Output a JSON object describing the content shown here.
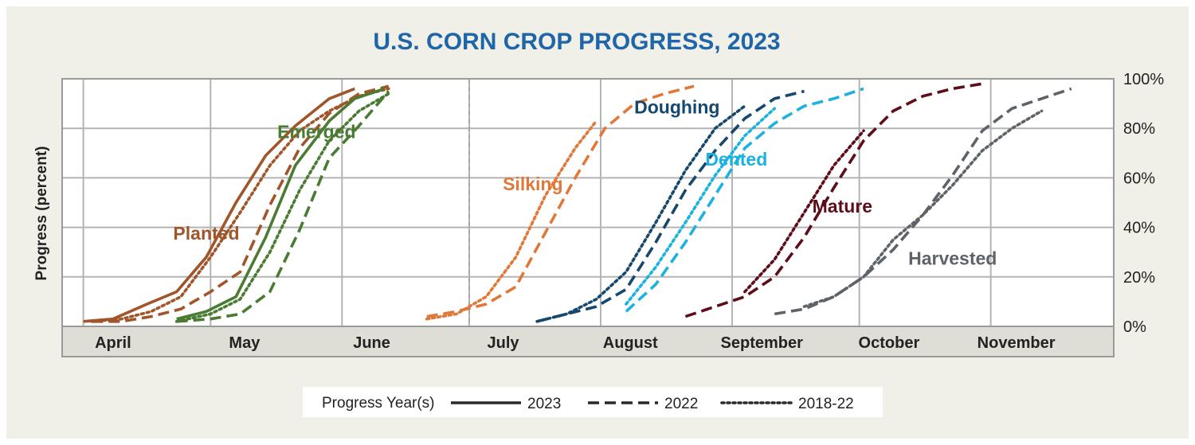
{
  "chart_data": {
    "type": "line",
    "title": "U.S. CORN CROP PROGRESS, 2023",
    "ylabel": "Progress (percent)",
    "xlabel": "",
    "ylim": [
      0,
      100
    ],
    "yticks": [
      "0%",
      "20%",
      "40%",
      "60%",
      "80%",
      "100%"
    ],
    "ytick_values": [
      0,
      20,
      40,
      60,
      80,
      100
    ],
    "y_axis_side": "right",
    "xlim": [
      "2023-03-27",
      "2023-11-30"
    ],
    "x_is_date": true,
    "month_labels": [
      {
        "label": "April",
        "date": "2023-04-08"
      },
      {
        "label": "May",
        "date": "2023-05-09"
      },
      {
        "label": "June",
        "date": "2023-06-08"
      },
      {
        "label": "July",
        "date": "2023-07-09"
      },
      {
        "label": "August",
        "date": "2023-08-08"
      },
      {
        "label": "September",
        "date": "2023-09-08"
      },
      {
        "label": "October",
        "date": "2023-10-08"
      },
      {
        "label": "November",
        "date": "2023-11-07"
      }
    ],
    "month_gridlines": [
      "2023-04-01",
      "2023-05-01",
      "2023-06-01",
      "2023-07-01",
      "2023-08-01",
      "2023-09-01",
      "2023-10-01",
      "2023-11-01"
    ],
    "current_date_marker": "2023-07-01",
    "grid": true,
    "legend": {
      "title": "Progress Year(s)",
      "placement": "bottom-center",
      "entries": [
        {
          "label": "2023",
          "style": "solid"
        },
        {
          "label": "2022",
          "style": "dashed"
        },
        {
          "label": "2018-22",
          "style": "dotted"
        }
      ]
    },
    "stages": [
      {
        "label": "Planted",
        "color": "#a0562a",
        "label_x": "2023-04-30",
        "label_y": 35
      },
      {
        "label": "Emerged",
        "color": "#4a7b33",
        "label_x": "2023-05-26",
        "label_y": 76
      },
      {
        "label": "Silking",
        "color": "#e0783a",
        "label_x": "2023-07-16",
        "label_y": 55
      },
      {
        "label": "Doughing",
        "color": "#16486e",
        "label_x": "2023-08-19",
        "label_y": 86
      },
      {
        "label": "Dented",
        "color": "#1bb2df",
        "label_x": "2023-09-02",
        "label_y": 65
      },
      {
        "label": "Mature",
        "color": "#5e0e1a",
        "label_x": "2023-09-27",
        "label_y": 46
      },
      {
        "label": "Harvested",
        "color": "#5d6369",
        "label_x": "2023-10-23",
        "label_y": 25
      }
    ],
    "series": [
      {
        "stage": "Planted",
        "year": "2023",
        "style": "solid",
        "points": [
          [
            "2023-04-01",
            2
          ],
          [
            "2023-04-08",
            3
          ],
          [
            "2023-04-16",
            9
          ],
          [
            "2023-04-23",
            14
          ],
          [
            "2023-04-30",
            28
          ],
          [
            "2023-05-07",
            50
          ],
          [
            "2023-05-14",
            69
          ],
          [
            "2023-05-21",
            81
          ],
          [
            "2023-05-29",
            92
          ],
          [
            "2023-06-04",
            96
          ]
        ]
      },
      {
        "stage": "Planted",
        "year": "2022",
        "style": "dashed",
        "points": [
          [
            "2023-04-03",
            2
          ],
          [
            "2023-04-10",
            2
          ],
          [
            "2023-04-17",
            4
          ],
          [
            "2023-04-24",
            7
          ],
          [
            "2023-05-01",
            14
          ],
          [
            "2023-05-08",
            22
          ],
          [
            "2023-05-15",
            49
          ],
          [
            "2023-05-22",
            72
          ],
          [
            "2023-05-29",
            86
          ],
          [
            "2023-06-05",
            94
          ],
          [
            "2023-06-12",
            97
          ]
        ]
      },
      {
        "stage": "Planted",
        "year": "2018-22",
        "style": "dotted",
        "points": [
          [
            "2023-04-03",
            2
          ],
          [
            "2023-04-10",
            3
          ],
          [
            "2023-04-17",
            6
          ],
          [
            "2023-04-24",
            12
          ],
          [
            "2023-05-01",
            28
          ],
          [
            "2023-05-08",
            46
          ],
          [
            "2023-05-15",
            65
          ],
          [
            "2023-05-22",
            79
          ],
          [
            "2023-05-29",
            87
          ],
          [
            "2023-06-05",
            93
          ],
          [
            "2023-06-12",
            96
          ]
        ]
      },
      {
        "stage": "Emerged",
        "year": "2023",
        "style": "solid",
        "points": [
          [
            "2023-04-23",
            3
          ],
          [
            "2023-04-30",
            6
          ],
          [
            "2023-05-07",
            12
          ],
          [
            "2023-05-14",
            36
          ],
          [
            "2023-05-21",
            65
          ],
          [
            "2023-05-29",
            83
          ],
          [
            "2023-06-04",
            92
          ],
          [
            "2023-06-11",
            96
          ]
        ]
      },
      {
        "stage": "Emerged",
        "year": "2022",
        "style": "dashed",
        "points": [
          [
            "2023-04-23",
            2
          ],
          [
            "2023-05-01",
            3
          ],
          [
            "2023-05-08",
            5
          ],
          [
            "2023-05-15",
            14
          ],
          [
            "2023-05-22",
            39
          ],
          [
            "2023-05-29",
            68
          ],
          [
            "2023-06-05",
            81
          ],
          [
            "2023-06-12",
            95
          ]
        ]
      },
      {
        "stage": "Emerged",
        "year": "2018-22",
        "style": "dotted",
        "points": [
          [
            "2023-04-23",
            2
          ],
          [
            "2023-05-01",
            5
          ],
          [
            "2023-05-08",
            11
          ],
          [
            "2023-05-15",
            30
          ],
          [
            "2023-05-22",
            55
          ],
          [
            "2023-05-29",
            75
          ],
          [
            "2023-06-05",
            87
          ],
          [
            "2023-06-12",
            94
          ]
        ]
      },
      {
        "stage": "Silking",
        "year": "2022",
        "style": "dashed",
        "points": [
          [
            "2023-06-21",
            4
          ],
          [
            "2023-06-28",
            6
          ],
          [
            "2023-07-05",
            9
          ],
          [
            "2023-07-12",
            16
          ],
          [
            "2023-07-19",
            38
          ],
          [
            "2023-07-26",
            60
          ],
          [
            "2023-08-02",
            80
          ],
          [
            "2023-08-09",
            90
          ],
          [
            "2023-08-16",
            94
          ],
          [
            "2023-08-23",
            97
          ]
        ]
      },
      {
        "stage": "Silking",
        "year": "2018-22",
        "style": "dotted",
        "points": [
          [
            "2023-06-21",
            3
          ],
          [
            "2023-06-28",
            5
          ],
          [
            "2023-07-05",
            12
          ],
          [
            "2023-07-12",
            28
          ],
          [
            "2023-07-19",
            53
          ],
          [
            "2023-07-26",
            72
          ],
          [
            "2023-07-31",
            83
          ]
        ]
      },
      {
        "stage": "Doughing",
        "year": "2022",
        "style": "dashed",
        "points": [
          [
            "2023-07-17",
            2
          ],
          [
            "2023-07-24",
            5
          ],
          [
            "2023-07-31",
            8
          ],
          [
            "2023-08-07",
            15
          ],
          [
            "2023-08-14",
            34
          ],
          [
            "2023-08-21",
            55
          ],
          [
            "2023-08-28",
            71
          ],
          [
            "2023-09-04",
            84
          ],
          [
            "2023-09-11",
            92
          ],
          [
            "2023-09-18",
            95
          ]
        ]
      },
      {
        "stage": "Doughing",
        "year": "2018-22",
        "style": "dotted",
        "points": [
          [
            "2023-07-17",
            2
          ],
          [
            "2023-07-24",
            5
          ],
          [
            "2023-07-31",
            11
          ],
          [
            "2023-08-07",
            22
          ],
          [
            "2023-08-14",
            42
          ],
          [
            "2023-08-21",
            63
          ],
          [
            "2023-08-28",
            80
          ],
          [
            "2023-09-04",
            89
          ]
        ]
      },
      {
        "stage": "Dented",
        "year": "2022",
        "style": "dashed",
        "points": [
          [
            "2023-08-07",
            6
          ],
          [
            "2023-08-14",
            17
          ],
          [
            "2023-08-21",
            34
          ],
          [
            "2023-08-28",
            53
          ],
          [
            "2023-09-04",
            72
          ],
          [
            "2023-09-11",
            82
          ],
          [
            "2023-09-18",
            89
          ],
          [
            "2023-09-25",
            92
          ],
          [
            "2023-10-02",
            96
          ]
        ]
      },
      {
        "stage": "Dented",
        "year": "2018-22",
        "style": "dotted",
        "points": [
          [
            "2023-08-07",
            9
          ],
          [
            "2023-08-14",
            24
          ],
          [
            "2023-08-21",
            42
          ],
          [
            "2023-08-28",
            61
          ],
          [
            "2023-09-04",
            77
          ],
          [
            "2023-09-11",
            88
          ]
        ]
      },
      {
        "stage": "Mature",
        "year": "2022",
        "style": "dashed",
        "points": [
          [
            "2023-08-21",
            4
          ],
          [
            "2023-08-28",
            8
          ],
          [
            "2023-09-04",
            12
          ],
          [
            "2023-09-11",
            20
          ],
          [
            "2023-09-18",
            36
          ],
          [
            "2023-09-25",
            56
          ],
          [
            "2023-10-02",
            75
          ],
          [
            "2023-10-09",
            87
          ],
          [
            "2023-10-16",
            93
          ],
          [
            "2023-10-23",
            96
          ],
          [
            "2023-10-30",
            98
          ]
        ]
      },
      {
        "stage": "Mature",
        "year": "2018-22",
        "style": "dotted",
        "points": [
          [
            "2023-09-04",
            14
          ],
          [
            "2023-09-11",
            27
          ],
          [
            "2023-09-18",
            46
          ],
          [
            "2023-09-25",
            65
          ],
          [
            "2023-10-02",
            79
          ]
        ]
      },
      {
        "stage": "Harvested",
        "year": "2022",
        "style": "dashed",
        "points": [
          [
            "2023-09-11",
            5
          ],
          [
            "2023-09-18",
            7
          ],
          [
            "2023-09-25",
            12
          ],
          [
            "2023-10-02",
            20
          ],
          [
            "2023-10-09",
            31
          ],
          [
            "2023-10-16",
            45
          ],
          [
            "2023-10-23",
            61
          ],
          [
            "2023-10-30",
            79
          ],
          [
            "2023-11-06",
            88
          ],
          [
            "2023-11-13",
            92
          ],
          [
            "2023-11-20",
            96
          ]
        ]
      },
      {
        "stage": "Harvested",
        "year": "2018-22",
        "style": "dotted",
        "points": [
          [
            "2023-09-18",
            8
          ],
          [
            "2023-09-25",
            12
          ],
          [
            "2023-10-02",
            20
          ],
          [
            "2023-10-09",
            35
          ],
          [
            "2023-10-16",
            45
          ],
          [
            "2023-10-23",
            57
          ],
          [
            "2023-10-30",
            71
          ],
          [
            "2023-11-06",
            80
          ],
          [
            "2023-11-13",
            87
          ]
        ]
      }
    ]
  }
}
